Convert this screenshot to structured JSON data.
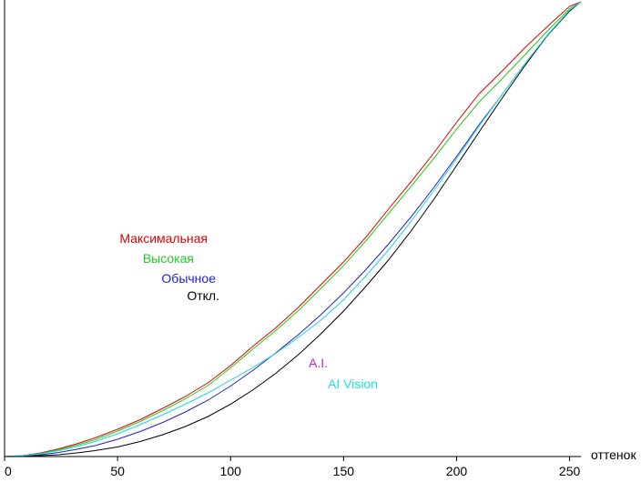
{
  "chart_data": {
    "type": "line",
    "title": "",
    "xlabel": "оттенок",
    "ylabel": "",
    "xlim": [
      0,
      255
    ],
    "ylim": [
      0,
      1
    ],
    "x_ticks": [
      0,
      50,
      100,
      150,
      200,
      250
    ],
    "x_tick_labels": [
      "0",
      "50",
      "100",
      "150",
      "200",
      "250"
    ],
    "grid": false,
    "legend": "inline labels",
    "series": [
      {
        "name": "Максимальная",
        "color": "#e00000",
        "x": [
          0,
          8,
          16,
          24,
          32,
          40,
          50,
          60,
          70,
          80,
          90,
          100,
          110,
          120,
          130,
          140,
          150,
          160,
          170,
          180,
          190,
          200,
          210,
          220,
          230,
          240,
          250,
          255
        ],
        "y": [
          0.0,
          0.002,
          0.008,
          0.017,
          0.028,
          0.041,
          0.06,
          0.081,
          0.106,
          0.132,
          0.162,
          0.2,
          0.243,
          0.283,
          0.328,
          0.378,
          0.428,
          0.483,
          0.545,
          0.605,
          0.668,
          0.735,
          0.798,
          0.847,
          0.898,
          0.945,
          0.99,
          1.0
        ]
      },
      {
        "name": "Высокая",
        "color": "#22cc22",
        "x": [
          0,
          8,
          16,
          24,
          32,
          40,
          50,
          60,
          70,
          80,
          90,
          100,
          110,
          120,
          130,
          140,
          150,
          160,
          170,
          180,
          190,
          200,
          210,
          220,
          230,
          240,
          250,
          255
        ],
        "y": [
          0.0,
          0.002,
          0.007,
          0.015,
          0.025,
          0.037,
          0.056,
          0.077,
          0.101,
          0.127,
          0.156,
          0.195,
          0.237,
          0.277,
          0.321,
          0.37,
          0.42,
          0.475,
          0.535,
          0.595,
          0.656,
          0.72,
          0.78,
          0.83,
          0.882,
          0.935,
          0.985,
          1.0
        ]
      },
      {
        "name": "Обычное",
        "color": "#2222cc",
        "x": [
          0,
          8,
          16,
          24,
          32,
          40,
          50,
          60,
          70,
          80,
          90,
          100,
          110,
          120,
          130,
          140,
          150,
          160,
          170,
          180,
          190,
          200,
          210,
          220,
          230,
          240,
          250,
          255
        ],
        "y": [
          0.0,
          0.001,
          0.004,
          0.009,
          0.016,
          0.024,
          0.038,
          0.055,
          0.075,
          0.098,
          0.124,
          0.155,
          0.19,
          0.228,
          0.268,
          0.312,
          0.36,
          0.412,
          0.468,
          0.528,
          0.592,
          0.66,
          0.73,
          0.795,
          0.862,
          0.925,
          0.98,
          1.0
        ]
      },
      {
        "name": "Откл.",
        "color": "#000000",
        "x": [
          0,
          8,
          16,
          24,
          32,
          40,
          50,
          60,
          70,
          80,
          90,
          100,
          110,
          120,
          130,
          140,
          150,
          160,
          170,
          180,
          190,
          200,
          210,
          220,
          230,
          240,
          250,
          255
        ],
        "y": [
          0.0,
          0.0,
          0.002,
          0.004,
          0.008,
          0.013,
          0.021,
          0.033,
          0.048,
          0.066,
          0.088,
          0.115,
          0.147,
          0.183,
          0.224,
          0.27,
          0.32,
          0.375,
          0.433,
          0.497,
          0.566,
          0.64,
          0.714,
          0.787,
          0.858,
          0.925,
          0.98,
          1.0
        ]
      },
      {
        "name": "A.I.",
        "color": "#cc22cc",
        "x": [
          0,
          8,
          16,
          24,
          32,
          40,
          50,
          60,
          70,
          80,
          90,
          100,
          110,
          120,
          130,
          140,
          150,
          160,
          170,
          180,
          190,
          200,
          210,
          220,
          230,
          240,
          250,
          255
        ],
        "y": [
          0.0,
          0.002,
          0.006,
          0.013,
          0.022,
          0.033,
          0.05,
          0.07,
          0.092,
          0.115,
          0.14,
          0.168,
          0.196,
          0.227,
          0.262,
          0.3,
          0.345,
          0.398,
          0.455,
          0.518,
          0.585,
          0.655,
          0.727,
          0.795,
          0.862,
          0.926,
          0.982,
          1.0
        ]
      },
      {
        "name": "AI Vision",
        "color": "#22dddd",
        "x": [
          0,
          8,
          16,
          24,
          32,
          40,
          50,
          60,
          70,
          80,
          90,
          100,
          110,
          120,
          130,
          140,
          150,
          160,
          170,
          180,
          190,
          200,
          210,
          220,
          230,
          240,
          250,
          255
        ],
        "y": [
          0.0,
          0.002,
          0.006,
          0.013,
          0.022,
          0.033,
          0.05,
          0.07,
          0.092,
          0.115,
          0.14,
          0.168,
          0.196,
          0.227,
          0.262,
          0.3,
          0.345,
          0.398,
          0.455,
          0.518,
          0.585,
          0.655,
          0.727,
          0.795,
          0.862,
          0.926,
          0.982,
          1.0
        ]
      }
    ]
  }
}
